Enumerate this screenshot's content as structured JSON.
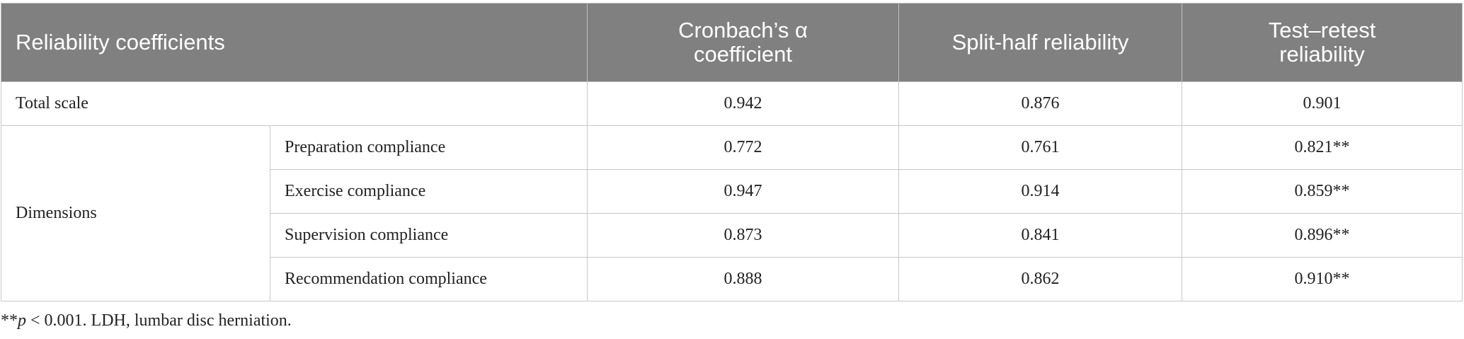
{
  "header": {
    "columns": [
      "Reliability coefficients",
      "Cronbach’s α coefficient",
      "Split-half reliability",
      "Test–retest reliability"
    ]
  },
  "table": {
    "rows": [
      [
        "Total scale",
        "0.942",
        "0.876",
        "0.901"
      ]
    ],
    "group": {
      "label": "Dimensions",
      "rows": [
        [
          "Preparation compliance",
          "0.772",
          "0.761",
          "0.821**"
        ],
        [
          "Exercise compliance",
          "0.947",
          "0.914",
          "0.859**"
        ],
        [
          "Supervision compliance",
          "0.873",
          "0.841",
          "0.896**"
        ],
        [
          "Recommendation compliance",
          "0.888",
          "0.862",
          "0.910**"
        ]
      ]
    }
  },
  "footnote": {
    "marker": "**",
    "variable": "p",
    "text": " < 0.001. LDH, lumbar disc herniation."
  }
}
